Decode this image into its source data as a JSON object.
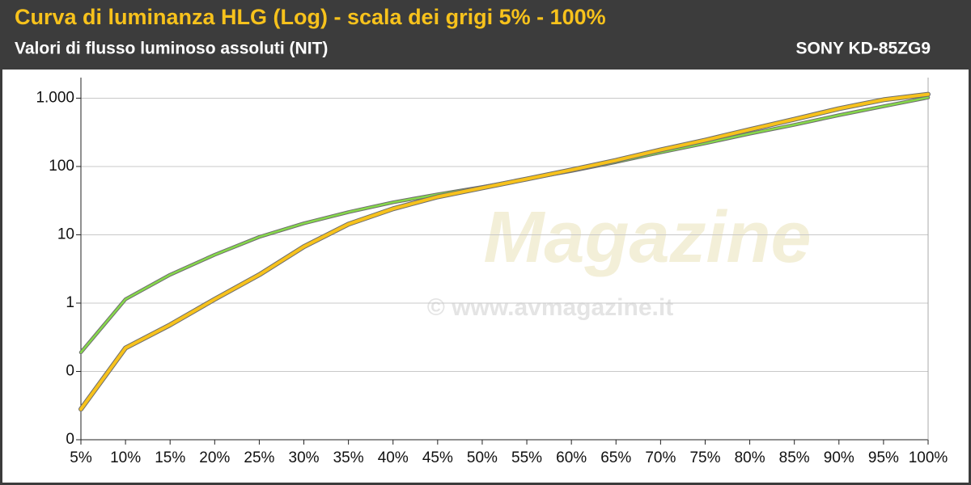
{
  "chart_data": {
    "type": "line",
    "title": "Curva di luminanza HLG (Log) - scala dei grigi 5% - 100%",
    "subtitle": "Valori di flusso luminoso assoluti (NIT)",
    "model": "SONY KD-85ZG9",
    "watermark": [
      "Magazine",
      "© www.avmagazine.it"
    ],
    "categories": [
      "5%",
      "10%",
      "15%",
      "20%",
      "25%",
      "30%",
      "35%",
      "40%",
      "45%",
      "50%",
      "55%",
      "60%",
      "65%",
      "70%",
      "75%",
      "80%",
      "85%",
      "90%",
      "95%",
      "100%"
    ],
    "series": [
      {
        "color": "#86d94a",
        "values": [
          0.19,
          1.14,
          2.6,
          5.1,
          9.3,
          14.7,
          21.5,
          29.9,
          39,
          50,
          65.7,
          86,
          116,
          161,
          218,
          302,
          407,
          563,
          760,
          1020
        ]
      },
      {
        "color": "#f7c21c",
        "values": [
          0.028,
          0.22,
          0.48,
          1.14,
          2.6,
          6.7,
          14.3,
          24,
          36,
          48.7,
          65.7,
          89,
          123,
          175,
          243,
          347,
          490,
          702,
          947,
          1140
        ]
      }
    ],
    "log_y": true,
    "ylim": [
      0.01,
      2000
    ],
    "yticks": [
      {
        "value": 0.01,
        "label": "0"
      },
      {
        "value": 0.1,
        "label": "0"
      },
      1,
      10,
      100,
      {
        "value": 1000,
        "label": "1.000"
      }
    ],
    "grid": true
  }
}
